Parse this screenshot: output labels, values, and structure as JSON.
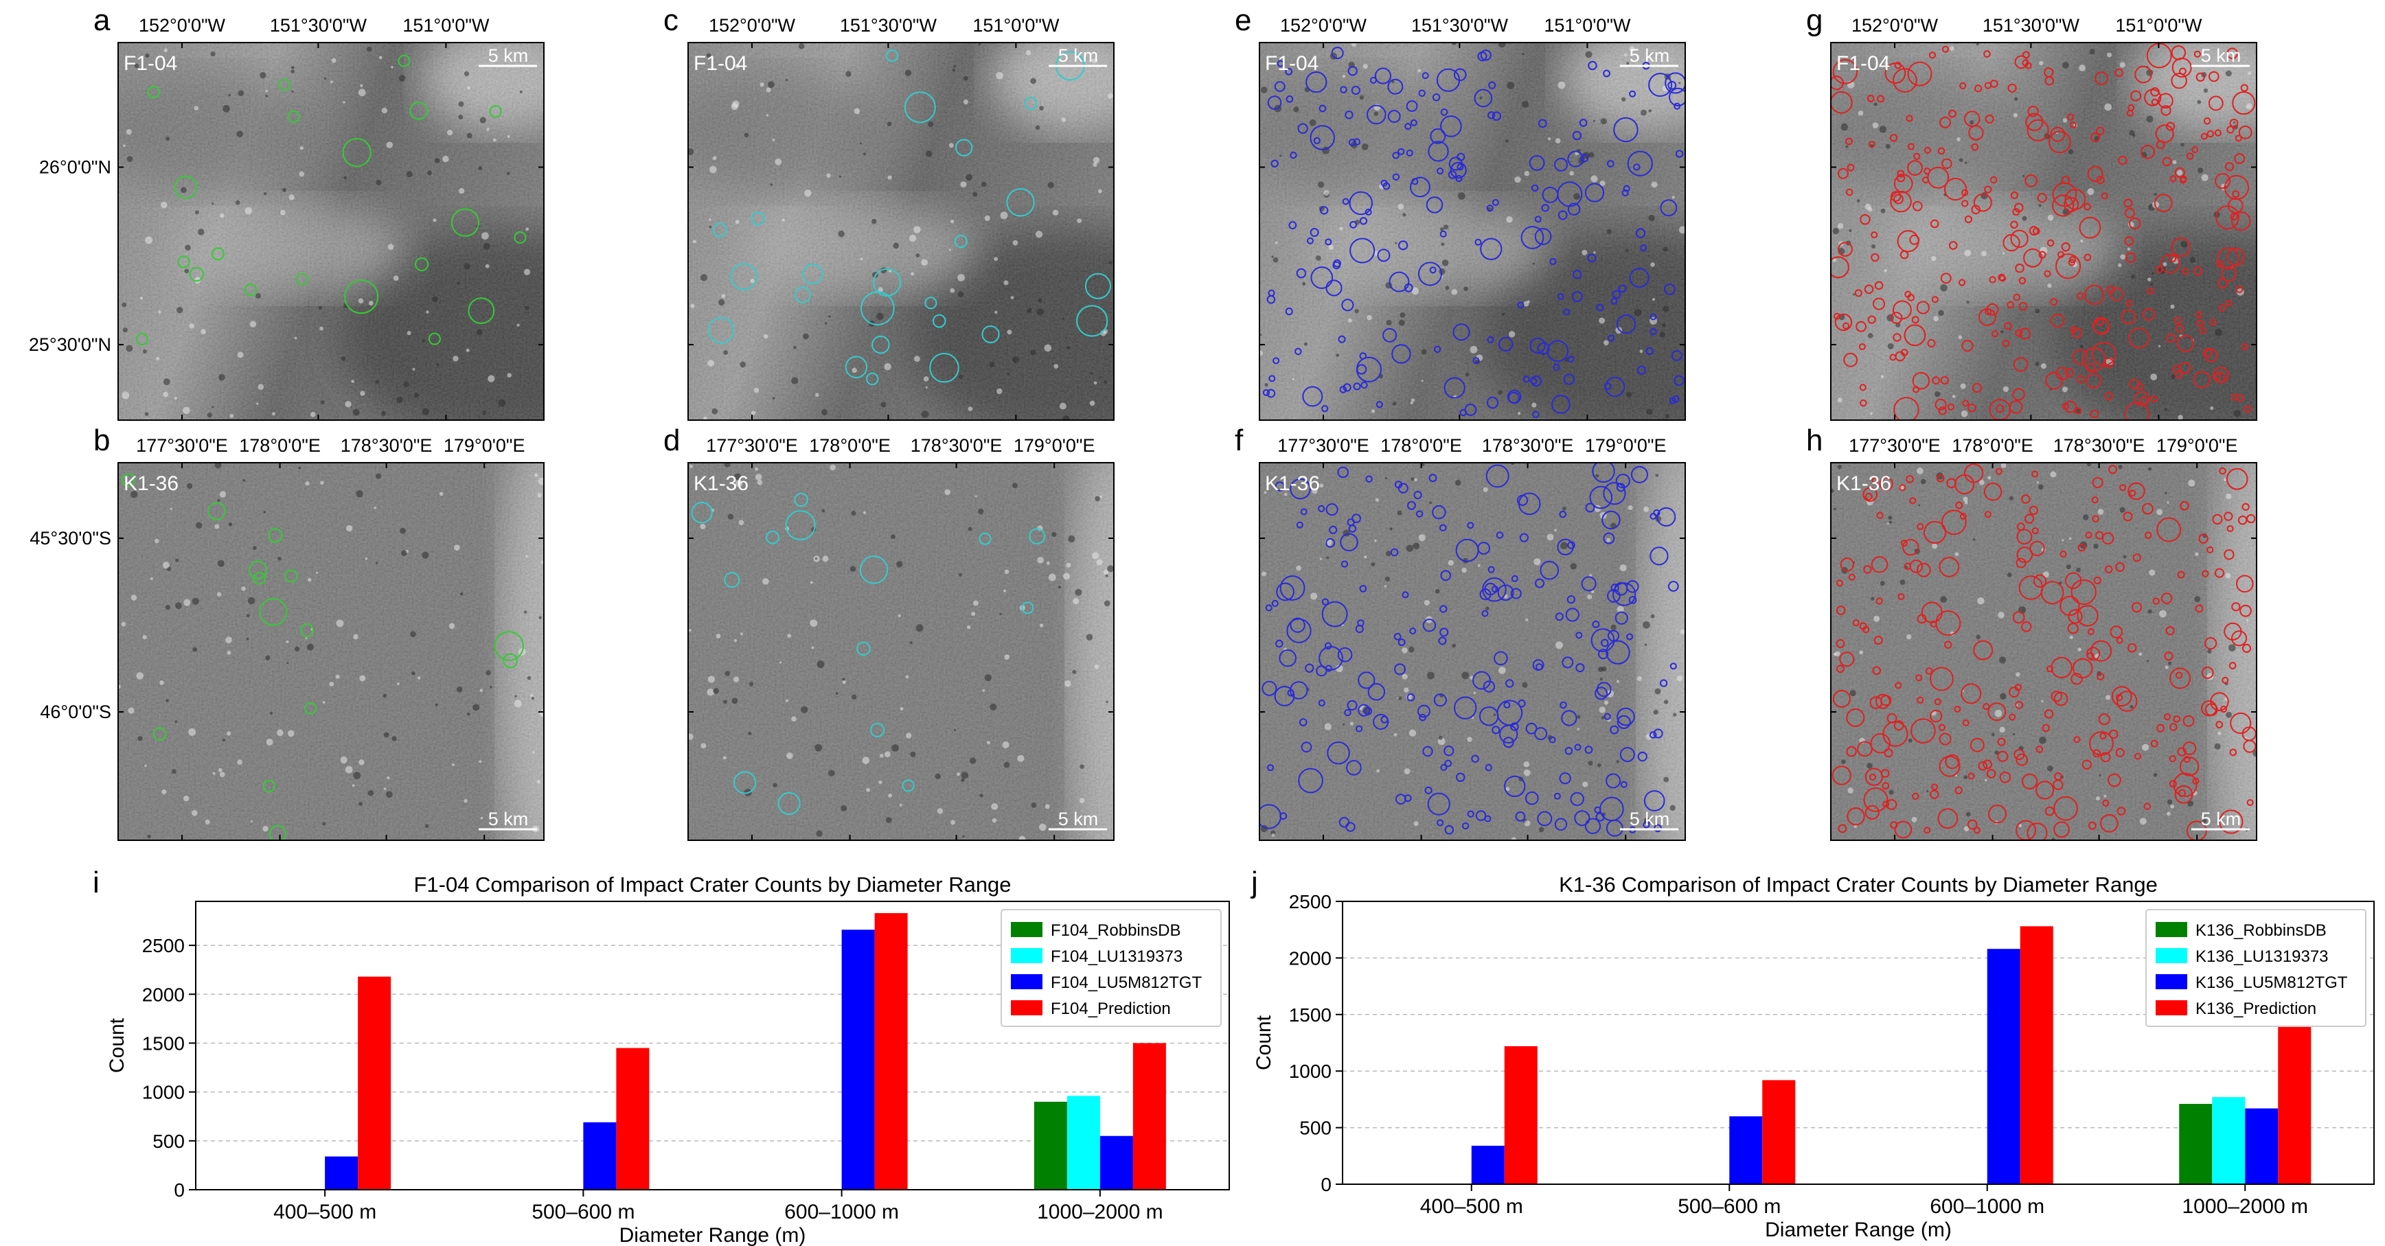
{
  "maps": {
    "top_x_ticks": [
      "152°0'0\"W",
      "151°30'0\"W",
      "151°0'0\"W"
    ],
    "top_y_ticks": [
      "26°0'0\"N",
      "25°30'0\"N"
    ],
    "bottom_x_ticks": [
      "177°30'0\"E",
      "178°0'0\"E",
      "178°30'0\"E",
      "179°0'0\"E"
    ],
    "bottom_y_ticks": [
      "45°30'0\"S",
      "46°0'0\"S"
    ],
    "scale_label": "5 km",
    "panels": [
      {
        "letter": "a",
        "region": "F1-04",
        "circle_color": "#33cc33",
        "count_shown": 20
      },
      {
        "letter": "c",
        "region": "F1-04",
        "circle_color": "#33cccc",
        "count_shown": 24
      },
      {
        "letter": "e",
        "region": "F1-04",
        "circle_color": "#2a2ad8",
        "count_shown": 190
      },
      {
        "letter": "g",
        "region": "F1-04",
        "circle_color": "#e02020",
        "count_shown": 300
      },
      {
        "letter": "b",
        "region": "K1-36",
        "circle_color": "#33cc33",
        "count_shown": 14
      },
      {
        "letter": "d",
        "region": "K1-36",
        "circle_color": "#33cccc",
        "count_shown": 14
      },
      {
        "letter": "f",
        "region": "K1-36",
        "circle_color": "#2a2ad8",
        "count_shown": 210
      },
      {
        "letter": "h",
        "region": "K1-36",
        "circle_color": "#e02020",
        "count_shown": 260
      }
    ]
  },
  "chart_data": [
    {
      "letter": "i",
      "type": "bar",
      "title": "F1-04 Comparison of Impact Crater Counts by Diameter Range",
      "xlabel": "Diameter Range (m)",
      "ylabel": "Count",
      "categories": [
        "400–500 m",
        "500–600 m",
        "600–1000 m",
        "1000–2000 m"
      ],
      "ylim": [
        0,
        2950
      ],
      "yticks": [
        0,
        500,
        1000,
        1500,
        2000,
        2500
      ],
      "grid": true,
      "legend_position": "top-right",
      "series": [
        {
          "name": "F104_RobbinsDB",
          "color": "#008000",
          "values": [
            0,
            0,
            0,
            900
          ]
        },
        {
          "name": "F104_LU1319373",
          "color": "#00ffff",
          "values": [
            0,
            0,
            0,
            960
          ]
        },
        {
          "name": "F104_LU5M812TGT",
          "color": "#0000ff",
          "values": [
            340,
            690,
            2660,
            550
          ]
        },
        {
          "name": "F104_Prediction",
          "color": "#ff0000",
          "values": [
            2180,
            1450,
            2830,
            1500
          ]
        }
      ]
    },
    {
      "letter": "j",
      "type": "bar",
      "title": "K1-36 Comparison of Impact Crater Counts by Diameter Range",
      "xlabel": "Diameter Range (m)",
      "ylabel": "Count",
      "categories": [
        "400–500 m",
        "500–600 m",
        "600–1000 m",
        "1000–2000 m"
      ],
      "ylim": [
        0,
        2500
      ],
      "yticks": [
        0,
        500,
        1000,
        1500,
        2000,
        2500
      ],
      "grid": true,
      "legend_position": "top-right",
      "series": [
        {
          "name": "K136_RobbinsDB",
          "color": "#008000",
          "values": [
            0,
            0,
            0,
            710
          ]
        },
        {
          "name": "K136_LU1319373",
          "color": "#00ffff",
          "values": [
            0,
            0,
            0,
            770
          ]
        },
        {
          "name": "K136_LU5M812TGT",
          "color": "#0000ff",
          "values": [
            340,
            600,
            2080,
            670
          ]
        },
        {
          "name": "K136_Prediction",
          "color": "#ff0000",
          "values": [
            1220,
            920,
            2280,
            1430
          ]
        }
      ]
    }
  ]
}
